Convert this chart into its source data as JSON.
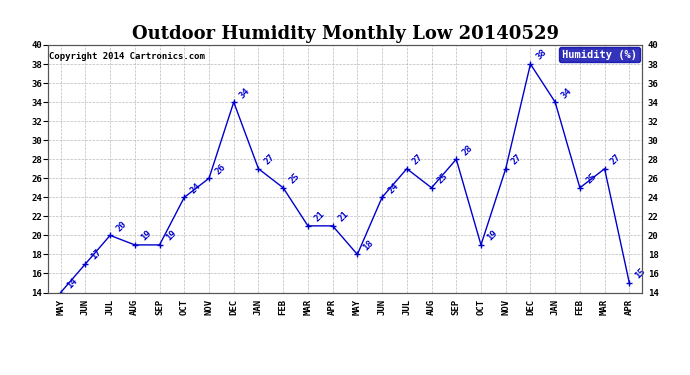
{
  "title": "Outdoor Humidity Monthly Low 20140529",
  "copyright": "Copyright 2014 Cartronics.com",
  "legend_label": "Humidity (%)",
  "months": [
    "MAY",
    "JUN",
    "JUL",
    "AUG",
    "SEP",
    "OCT",
    "NOV",
    "DEC",
    "JAN",
    "FEB",
    "MAR",
    "APR",
    "MAY",
    "JUN",
    "JUL",
    "AUG",
    "SEP",
    "OCT",
    "NOV",
    "DEC",
    "JAN",
    "FEB",
    "MAR",
    "APR"
  ],
  "values": [
    14,
    17,
    20,
    19,
    19,
    24,
    26,
    34,
    27,
    25,
    21,
    21,
    18,
    24,
    27,
    25,
    28,
    19,
    27,
    38,
    34,
    25,
    27,
    15
  ],
  "line_color": "#0000cc",
  "marker_color": "#0000cc",
  "label_color": "#0000cc",
  "background_color": "#ffffff",
  "grid_color": "#aaaaaa",
  "ylim": [
    14,
    40
  ],
  "yticks": [
    14,
    16,
    18,
    20,
    22,
    24,
    26,
    28,
    30,
    32,
    34,
    36,
    38,
    40
  ],
  "title_fontsize": 13,
  "label_fontsize": 6.5,
  "tick_fontsize": 6.5,
  "copyright_fontsize": 6.5,
  "legend_bg": "#0000aa",
  "legend_text_color": "#ffffff"
}
